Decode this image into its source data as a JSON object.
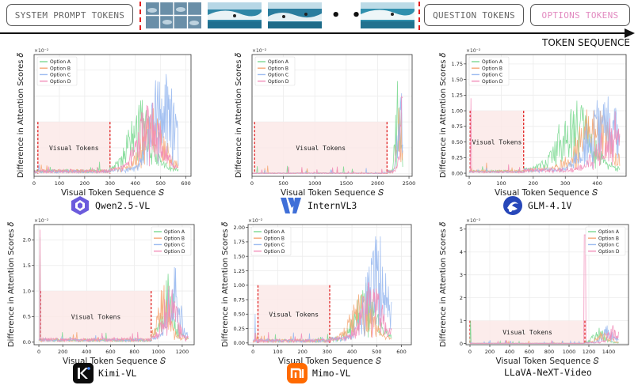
{
  "banner": {
    "system_prompt_tokens": "SYSTEM PROMPT TOKENS",
    "ellipsis": "• • •",
    "question_tokens": "QUESTION TOKENS",
    "options_tokens": "OPTIONS TOKENS",
    "token_sequence": "TOKEN SEQUENCE"
  },
  "colors": {
    "option_a": "#7cd992",
    "option_b": "#f5a877",
    "option_c": "#99b9f0",
    "option_d": "#f28cb8",
    "cutoff": "#e02020",
    "region_fill": "#fbe9e7",
    "options_text": "#e28ac0"
  },
  "shared": {
    "xlabel": "Visual Token Sequence 𝑆",
    "ylabel": "Difference in Attention Scores 𝛿",
    "legend": [
      "Option A",
      "Option B",
      "Option C",
      "Option D"
    ],
    "region_label": "Visual Tokens",
    "scale_label": "×10⁻²"
  },
  "chart_data": [
    {
      "type": "line",
      "model": "Qwen2.5-VL",
      "xlim": [
        0,
        620
      ],
      "ylim": [
        -0.05,
        2.3
      ],
      "xticks": [
        0,
        100,
        200,
        300,
        400,
        500,
        600
      ],
      "yticks": [],
      "visual_tokens_range": [
        15,
        300
      ],
      "region_top": 1.0,
      "n_tokens": 570,
      "series": [
        {
          "name": "Option A",
          "baseline": 0.05,
          "peak_x": 420,
          "peak_y": 1.35
        },
        {
          "name": "Option B",
          "baseline": 0.05,
          "peak_x": 470,
          "peak_y": 1.2
        },
        {
          "name": "Option C",
          "baseline": 0.04,
          "peak_x": 510,
          "peak_y": 2.15
        },
        {
          "name": "Option D",
          "baseline": 0.05,
          "peak_x": 455,
          "peak_y": 1.4
        }
      ]
    },
    {
      "type": "line",
      "model": "InternVL3",
      "xlim": [
        0,
        2550
      ],
      "ylim": [
        -0.05,
        2.3
      ],
      "xticks": [
        0,
        500,
        1000,
        1500,
        2000,
        2500
      ],
      "yticks": [],
      "visual_tokens_range": [
        40,
        2150
      ],
      "region_top": 1.0,
      "n_tokens": 2400,
      "series": [
        {
          "name": "Option A",
          "baseline": 0.01,
          "peak_x": 2330,
          "peak_y": 1.95
        },
        {
          "name": "Option B",
          "baseline": 0.01,
          "peak_x": 2350,
          "peak_y": 1.7
        },
        {
          "name": "Option C",
          "baseline": 0.01,
          "peak_x": 2370,
          "peak_y": 2.1
        },
        {
          "name": "Option D",
          "baseline": 0.01,
          "peak_x": 2390,
          "peak_y": 1.5
        }
      ]
    },
    {
      "type": "line",
      "model": "GLM-4.1V",
      "xlim": [
        -10,
        490
      ],
      "ylim": [
        -0.05,
        1.9
      ],
      "xticks": [
        0,
        100,
        200,
        300,
        400
      ],
      "yticks": [
        0.0,
        0.25,
        0.5,
        0.75,
        1.0,
        1.25,
        1.5,
        1.75
      ],
      "visual_tokens_range": [
        3,
        170
      ],
      "region_top": 1.0,
      "n_tokens": 470,
      "series": [
        {
          "name": "Option A",
          "baseline": 0.03,
          "peak_x": 330,
          "peak_y": 1.15
        },
        {
          "name": "Option B",
          "baseline": 0.03,
          "peak_x": 390,
          "peak_y": 1.05
        },
        {
          "name": "Option C",
          "baseline": 0.02,
          "peak_x": 420,
          "peak_y": 1.3
        },
        {
          "name": "Option D",
          "baseline": 0.02,
          "peak_x": 460,
          "peak_y": 0.95
        }
      ]
    },
    {
      "type": "line",
      "model": "Kimi-VL",
      "xlim": [
        -40,
        1300
      ],
      "ylim": [
        -0.05,
        2.3
      ],
      "xticks": [
        0,
        200,
        400,
        600,
        800,
        1000,
        1200
      ],
      "yticks": [
        0.0,
        0.5,
        1.0,
        1.5,
        2.0
      ],
      "visual_tokens_range": [
        15,
        940
      ],
      "region_top": 1.0,
      "n_tokens": 1250,
      "series": [
        {
          "name": "Option A",
          "baseline": 0.04,
          "peak_x": 1080,
          "peak_y": 1.35
        },
        {
          "name": "Option B",
          "baseline": 0.04,
          "peak_x": 1050,
          "peak_y": 1.1
        },
        {
          "name": "Option C",
          "baseline": 0.04,
          "peak_x": 1130,
          "peak_y": 1.55
        },
        {
          "name": "Option D",
          "baseline": 0.05,
          "peak_x": 1100,
          "peak_y": 1.2
        }
      ]
    },
    {
      "type": "line",
      "model": "Mimo-VL",
      "xlim": [
        -20,
        640
      ],
      "ylim": [
        -0.03,
        2.05
      ],
      "xticks": [
        0,
        100,
        200,
        300,
        400,
        500,
        600
      ],
      "yticks": [
        0.0,
        0.25,
        0.5,
        0.75,
        1.0,
        1.25,
        1.5,
        1.75,
        2.0
      ],
      "visual_tokens_range": [
        20,
        310
      ],
      "region_top": 1.0,
      "n_tokens": 560,
      "series": [
        {
          "name": "Option A",
          "baseline": 0.04,
          "peak_x": 460,
          "peak_y": 1.0
        },
        {
          "name": "Option B",
          "baseline": 0.04,
          "peak_x": 440,
          "peak_y": 0.9
        },
        {
          "name": "Option C",
          "baseline": 0.04,
          "peak_x": 500,
          "peak_y": 1.9
        },
        {
          "name": "Option D",
          "baseline": 0.04,
          "peak_x": 480,
          "peak_y": 1.05
        }
      ]
    },
    {
      "type": "line",
      "model": "LLaVA-NeXT-Video",
      "xlim": [
        -40,
        1600
      ],
      "ylim": [
        -0.05,
        5.2
      ],
      "xticks": [
        0,
        200,
        400,
        600,
        800,
        1000,
        1200,
        1400
      ],
      "yticks": [
        0,
        1,
        2,
        3,
        4,
        5
      ],
      "visual_tokens_range": [
        0,
        1160
      ],
      "region_top": 1.0,
      "n_tokens": 1500,
      "series": [
        {
          "name": "Option A",
          "baseline": 0.01,
          "peak_x": 1300,
          "peak_y": 0.7
        },
        {
          "name": "Option B",
          "baseline": 0.01,
          "peak_x": 1350,
          "peak_y": 0.6
        },
        {
          "name": "Option C",
          "baseline": 0.01,
          "peak_x": 1400,
          "peak_y": 0.8
        },
        {
          "name": "Option D",
          "baseline": 0.01,
          "peak_x": 1450,
          "peak_y": 0.75
        }
      ]
    }
  ]
}
